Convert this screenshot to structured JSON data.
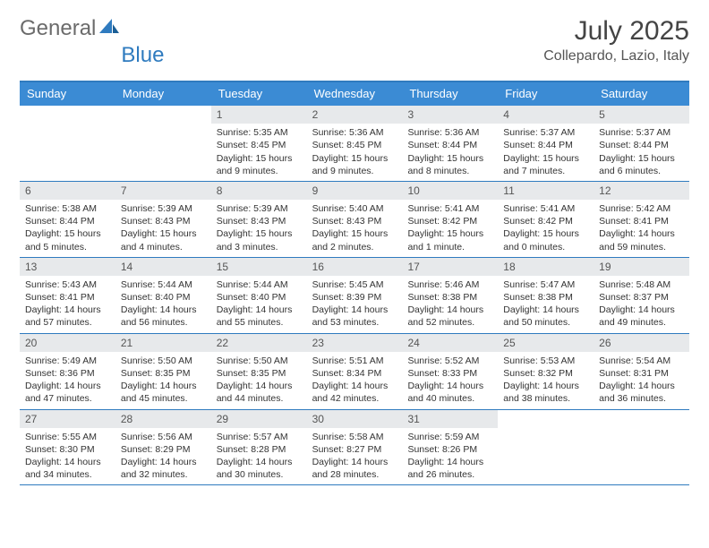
{
  "brand": {
    "part1": "General",
    "part2": "Blue"
  },
  "title": "July 2025",
  "location": "Collepardo, Lazio, Italy",
  "colors": {
    "header_bg": "#3b8bd4",
    "header_text": "#ffffff",
    "rule": "#2f7bbf",
    "daynum_bg": "#e7e9eb",
    "body_text": "#333333",
    "title_text": "#444444",
    "brand_gray": "#6b6b6b",
    "brand_blue": "#2f7bbf",
    "background": "#ffffff"
  },
  "day_headers": [
    "Sunday",
    "Monday",
    "Tuesday",
    "Wednesday",
    "Thursday",
    "Friday",
    "Saturday"
  ],
  "weeks": [
    [
      {
        "n": "",
        "sunrise": "",
        "sunset": "",
        "daylight": ""
      },
      {
        "n": "",
        "sunrise": "",
        "sunset": "",
        "daylight": ""
      },
      {
        "n": "1",
        "sunrise": "Sunrise: 5:35 AM",
        "sunset": "Sunset: 8:45 PM",
        "daylight": "Daylight: 15 hours and 9 minutes."
      },
      {
        "n": "2",
        "sunrise": "Sunrise: 5:36 AM",
        "sunset": "Sunset: 8:45 PM",
        "daylight": "Daylight: 15 hours and 9 minutes."
      },
      {
        "n": "3",
        "sunrise": "Sunrise: 5:36 AM",
        "sunset": "Sunset: 8:44 PM",
        "daylight": "Daylight: 15 hours and 8 minutes."
      },
      {
        "n": "4",
        "sunrise": "Sunrise: 5:37 AM",
        "sunset": "Sunset: 8:44 PM",
        "daylight": "Daylight: 15 hours and 7 minutes."
      },
      {
        "n": "5",
        "sunrise": "Sunrise: 5:37 AM",
        "sunset": "Sunset: 8:44 PM",
        "daylight": "Daylight: 15 hours and 6 minutes."
      }
    ],
    [
      {
        "n": "6",
        "sunrise": "Sunrise: 5:38 AM",
        "sunset": "Sunset: 8:44 PM",
        "daylight": "Daylight: 15 hours and 5 minutes."
      },
      {
        "n": "7",
        "sunrise": "Sunrise: 5:39 AM",
        "sunset": "Sunset: 8:43 PM",
        "daylight": "Daylight: 15 hours and 4 minutes."
      },
      {
        "n": "8",
        "sunrise": "Sunrise: 5:39 AM",
        "sunset": "Sunset: 8:43 PM",
        "daylight": "Daylight: 15 hours and 3 minutes."
      },
      {
        "n": "9",
        "sunrise": "Sunrise: 5:40 AM",
        "sunset": "Sunset: 8:43 PM",
        "daylight": "Daylight: 15 hours and 2 minutes."
      },
      {
        "n": "10",
        "sunrise": "Sunrise: 5:41 AM",
        "sunset": "Sunset: 8:42 PM",
        "daylight": "Daylight: 15 hours and 1 minute."
      },
      {
        "n": "11",
        "sunrise": "Sunrise: 5:41 AM",
        "sunset": "Sunset: 8:42 PM",
        "daylight": "Daylight: 15 hours and 0 minutes."
      },
      {
        "n": "12",
        "sunrise": "Sunrise: 5:42 AM",
        "sunset": "Sunset: 8:41 PM",
        "daylight": "Daylight: 14 hours and 59 minutes."
      }
    ],
    [
      {
        "n": "13",
        "sunrise": "Sunrise: 5:43 AM",
        "sunset": "Sunset: 8:41 PM",
        "daylight": "Daylight: 14 hours and 57 minutes."
      },
      {
        "n": "14",
        "sunrise": "Sunrise: 5:44 AM",
        "sunset": "Sunset: 8:40 PM",
        "daylight": "Daylight: 14 hours and 56 minutes."
      },
      {
        "n": "15",
        "sunrise": "Sunrise: 5:44 AM",
        "sunset": "Sunset: 8:40 PM",
        "daylight": "Daylight: 14 hours and 55 minutes."
      },
      {
        "n": "16",
        "sunrise": "Sunrise: 5:45 AM",
        "sunset": "Sunset: 8:39 PM",
        "daylight": "Daylight: 14 hours and 53 minutes."
      },
      {
        "n": "17",
        "sunrise": "Sunrise: 5:46 AM",
        "sunset": "Sunset: 8:38 PM",
        "daylight": "Daylight: 14 hours and 52 minutes."
      },
      {
        "n": "18",
        "sunrise": "Sunrise: 5:47 AM",
        "sunset": "Sunset: 8:38 PM",
        "daylight": "Daylight: 14 hours and 50 minutes."
      },
      {
        "n": "19",
        "sunrise": "Sunrise: 5:48 AM",
        "sunset": "Sunset: 8:37 PM",
        "daylight": "Daylight: 14 hours and 49 minutes."
      }
    ],
    [
      {
        "n": "20",
        "sunrise": "Sunrise: 5:49 AM",
        "sunset": "Sunset: 8:36 PM",
        "daylight": "Daylight: 14 hours and 47 minutes."
      },
      {
        "n": "21",
        "sunrise": "Sunrise: 5:50 AM",
        "sunset": "Sunset: 8:35 PM",
        "daylight": "Daylight: 14 hours and 45 minutes."
      },
      {
        "n": "22",
        "sunrise": "Sunrise: 5:50 AM",
        "sunset": "Sunset: 8:35 PM",
        "daylight": "Daylight: 14 hours and 44 minutes."
      },
      {
        "n": "23",
        "sunrise": "Sunrise: 5:51 AM",
        "sunset": "Sunset: 8:34 PM",
        "daylight": "Daylight: 14 hours and 42 minutes."
      },
      {
        "n": "24",
        "sunrise": "Sunrise: 5:52 AM",
        "sunset": "Sunset: 8:33 PM",
        "daylight": "Daylight: 14 hours and 40 minutes."
      },
      {
        "n": "25",
        "sunrise": "Sunrise: 5:53 AM",
        "sunset": "Sunset: 8:32 PM",
        "daylight": "Daylight: 14 hours and 38 minutes."
      },
      {
        "n": "26",
        "sunrise": "Sunrise: 5:54 AM",
        "sunset": "Sunset: 8:31 PM",
        "daylight": "Daylight: 14 hours and 36 minutes."
      }
    ],
    [
      {
        "n": "27",
        "sunrise": "Sunrise: 5:55 AM",
        "sunset": "Sunset: 8:30 PM",
        "daylight": "Daylight: 14 hours and 34 minutes."
      },
      {
        "n": "28",
        "sunrise": "Sunrise: 5:56 AM",
        "sunset": "Sunset: 8:29 PM",
        "daylight": "Daylight: 14 hours and 32 minutes."
      },
      {
        "n": "29",
        "sunrise": "Sunrise: 5:57 AM",
        "sunset": "Sunset: 8:28 PM",
        "daylight": "Daylight: 14 hours and 30 minutes."
      },
      {
        "n": "30",
        "sunrise": "Sunrise: 5:58 AM",
        "sunset": "Sunset: 8:27 PM",
        "daylight": "Daylight: 14 hours and 28 minutes."
      },
      {
        "n": "31",
        "sunrise": "Sunrise: 5:59 AM",
        "sunset": "Sunset: 8:26 PM",
        "daylight": "Daylight: 14 hours and 26 minutes."
      },
      {
        "n": "",
        "sunrise": "",
        "sunset": "",
        "daylight": ""
      },
      {
        "n": "",
        "sunrise": "",
        "sunset": "",
        "daylight": ""
      }
    ]
  ]
}
